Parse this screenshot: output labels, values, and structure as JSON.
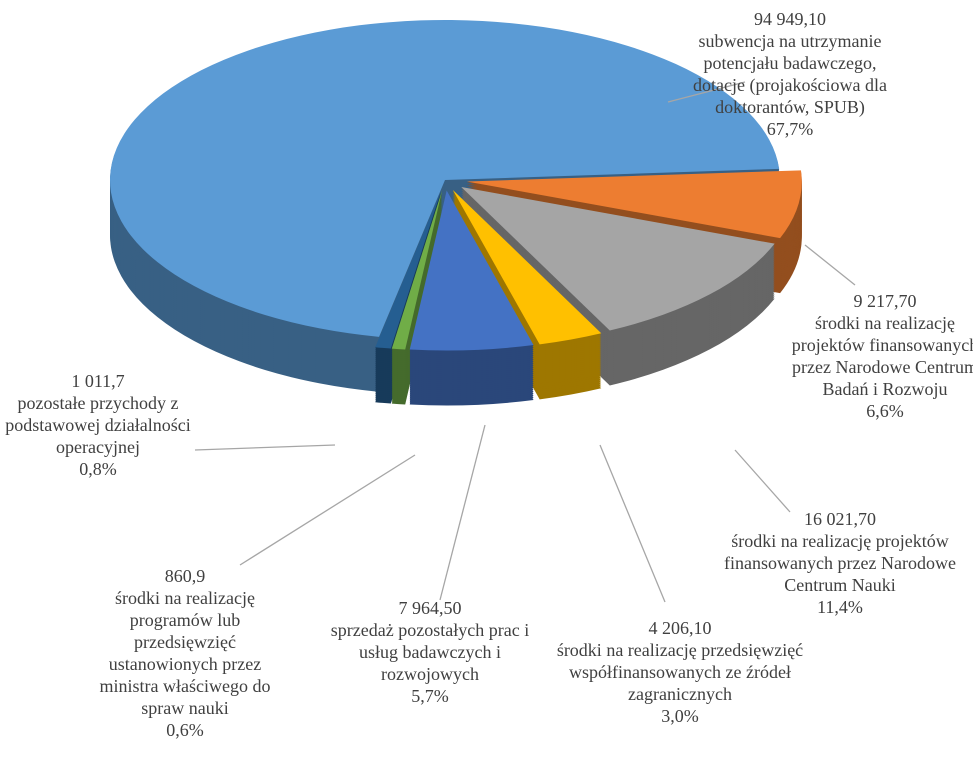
{
  "chart_data": {
    "type": "pie",
    "categories": [
      "środki na realizację projektów finansowanych przez Narodowe Centrum Badań i Rozwoju",
      "środki na realizację projektów finansowanych przez Narodowe Centrum Nauki",
      "środki na realizację przedsięwzięć współfinansowanych ze źródeł zagranicznych",
      "sprzedaż pozostałych prac i usług badawczych i rozwojowych",
      "środki na realizację programów lub przedsięwzięć ustanowionych przez ministra właściwego do spraw nauki",
      "pozostałe przychody z podstawowej działalności operacyjnej",
      "subwencja na utrzymanie potencjału badawczego, dotacje (projakościowa dla doktorantów, SPUB)"
    ],
    "values": [
      9217.7,
      16021.7,
      4206.1,
      7964.5,
      860.9,
      1011.7,
      94949.1
    ],
    "value_labels": [
      "9 217,70",
      "16 021,70",
      "4 206,10",
      "7 964,50",
      "860,9",
      "1 011,7",
      "94 949,10"
    ],
    "percentages": [
      6.6,
      11.4,
      3.0,
      5.7,
      0.6,
      0.8,
      67.7
    ],
    "percentage_labels": [
      "6,6%",
      "11,4%",
      "3,0%",
      "5,7%",
      "0,6%",
      "0,8%",
      "67,7%"
    ],
    "colors": [
      "#ed7d31",
      "#a5a5a5",
      "#ffc000",
      "#4472c4",
      "#70ad47",
      "#255e91",
      "#5b9bd5"
    ]
  }
}
